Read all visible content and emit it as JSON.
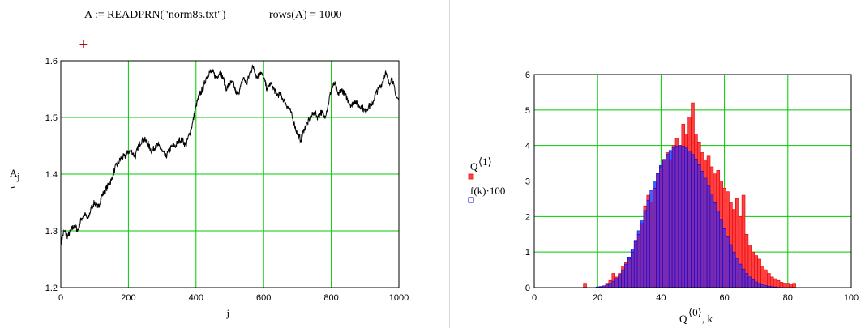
{
  "worksheet": {
    "read_formula": "A := READPRN(\"norm8s.txt\")",
    "rows_formula": "rows(A) = 1000",
    "marker": "+"
  },
  "chart_data": [
    {
      "type": "line",
      "xlabel": "j",
      "ylabel": "A",
      "ylabel_subscript": "j",
      "xlim": [
        0,
        1000
      ],
      "ylim": [
        1.2,
        1.6
      ],
      "xticks": [
        0,
        200,
        400,
        600,
        800,
        1000
      ],
      "yticks": [
        1.2,
        1.3,
        1.4,
        1.5,
        1.6
      ],
      "xtick_labels": [
        "0",
        "200",
        "400",
        "600",
        "800",
        "1000"
      ],
      "ytick_labels": [
        "1.2",
        "1.3",
        "1.4",
        "1.5",
        "1.6"
      ],
      "grid": true,
      "colors": {
        "line": "#000000",
        "grid": "#00c800"
      },
      "series": [
        {
          "x": [
            0,
            10,
            20,
            30,
            40,
            50,
            60,
            70,
            80,
            90,
            100,
            110,
            120,
            130,
            140,
            150,
            160,
            170,
            180,
            190,
            200,
            210,
            220,
            230,
            240,
            250,
            260,
            270,
            280,
            290,
            300,
            310,
            320,
            330,
            340,
            350,
            360,
            370,
            380,
            390,
            400,
            410,
            420,
            430,
            440,
            450,
            460,
            470,
            480,
            490,
            500,
            510,
            520,
            530,
            540,
            550,
            560,
            570,
            580,
            590,
            600,
            610,
            620,
            630,
            640,
            650,
            660,
            670,
            680,
            690,
            700,
            710,
            720,
            730,
            740,
            750,
            760,
            770,
            780,
            790,
            800,
            810,
            820,
            830,
            840,
            850,
            860,
            870,
            880,
            890,
            900,
            910,
            920,
            930,
            940,
            950,
            960,
            970,
            980,
            990,
            1000
          ],
          "values": [
            1.28,
            1.3,
            1.29,
            1.3,
            1.31,
            1.3,
            1.32,
            1.33,
            1.32,
            1.34,
            1.35,
            1.34,
            1.36,
            1.37,
            1.38,
            1.39,
            1.41,
            1.42,
            1.43,
            1.43,
            1.44,
            1.44,
            1.43,
            1.45,
            1.46,
            1.46,
            1.45,
            1.44,
            1.45,
            1.45,
            1.44,
            1.43,
            1.44,
            1.45,
            1.45,
            1.46,
            1.46,
            1.45,
            1.47,
            1.49,
            1.52,
            1.54,
            1.55,
            1.57,
            1.58,
            1.58,
            1.57,
            1.58,
            1.57,
            1.55,
            1.56,
            1.56,
            1.54,
            1.55,
            1.57,
            1.56,
            1.58,
            1.59,
            1.57,
            1.58,
            1.57,
            1.55,
            1.56,
            1.55,
            1.54,
            1.54,
            1.53,
            1.52,
            1.51,
            1.49,
            1.47,
            1.46,
            1.48,
            1.49,
            1.5,
            1.51,
            1.5,
            1.51,
            1.5,
            1.52,
            1.55,
            1.56,
            1.54,
            1.55,
            1.54,
            1.53,
            1.52,
            1.53,
            1.52,
            1.52,
            1.51,
            1.52,
            1.52,
            1.54,
            1.55,
            1.56,
            1.58,
            1.56,
            1.57,
            1.54,
            1.53
          ]
        }
      ]
    },
    {
      "type": "bar",
      "xlabel": "Q",
      "xlabel_superscript": "⟨0⟩",
      "xlabel_suffix": ", k",
      "xlim": [
        0,
        100
      ],
      "ylim": [
        0,
        6
      ],
      "xticks": [
        0,
        20,
        40,
        60,
        80,
        100
      ],
      "yticks": [
        0,
        1,
        2,
        3,
        4,
        5,
        6
      ],
      "xtick_labels": [
        "0",
        "20",
        "40",
        "60",
        "80",
        "100"
      ],
      "ytick_labels": [
        "0",
        "1",
        "2",
        "3",
        "4",
        "5",
        "6"
      ],
      "grid": true,
      "legend": "left",
      "colors": {
        "grid": "#00c800",
        "overlap": "#7a2ab0"
      },
      "series": [
        {
          "name": "Q",
          "name_superscript": "⟨1⟩",
          "color": "#ff4040",
          "edge": "#e00000",
          "x": [
            16,
            17,
            18,
            19,
            20,
            21,
            22,
            23,
            24,
            25,
            26,
            27,
            28,
            29,
            30,
            31,
            32,
            33,
            34,
            35,
            36,
            37,
            38,
            39,
            40,
            41,
            42,
            43,
            44,
            45,
            46,
            47,
            48,
            49,
            50,
            51,
            52,
            53,
            54,
            55,
            56,
            57,
            58,
            59,
            60,
            61,
            62,
            63,
            64,
            65,
            66,
            67,
            68,
            69,
            70,
            71,
            72,
            73,
            74,
            75,
            76,
            77,
            78,
            79,
            80,
            81,
            82,
            83,
            84
          ],
          "values": [
            0.1,
            0,
            0,
            0,
            0,
            0.02,
            0.05,
            0.1,
            0.2,
            0.4,
            0.3,
            0.4,
            0.6,
            0.7,
            0.8,
            1.0,
            1.3,
            1.5,
            1.8,
            2.3,
            2.6,
            2.4,
            2.8,
            3.2,
            3.4,
            3.6,
            3.8,
            3.6,
            4.0,
            4.2,
            4.0,
            4.6,
            4.3,
            4.8,
            5.2,
            4.3,
            4.1,
            3.8,
            3.6,
            3.7,
            3.4,
            3.2,
            3.3,
            3.0,
            2.8,
            2.7,
            2.4,
            2.2,
            2.5,
            2.0,
            2.6,
            1.5,
            1.2,
            1.0,
            0.9,
            0.8,
            0.6,
            0.5,
            0.4,
            0.3,
            0.25,
            0.2,
            0.15,
            0.12,
            0.1,
            0.08,
            0.1,
            0,
            0
          ]
        },
        {
          "name": "f(k)·100",
          "color": "#4060ff",
          "edge": "#0000d0",
          "x": [
            16,
            17,
            18,
            19,
            20,
            21,
            22,
            23,
            24,
            25,
            26,
            27,
            28,
            29,
            30,
            31,
            32,
            33,
            34,
            35,
            36,
            37,
            38,
            39,
            40,
            41,
            42,
            43,
            44,
            45,
            46,
            47,
            48,
            49,
            50,
            51,
            52,
            53,
            54,
            55,
            56,
            57,
            58,
            59,
            60,
            61,
            62,
            63,
            64,
            65,
            66,
            67,
            68,
            69,
            70,
            71,
            72,
            73,
            74,
            75,
            76,
            77,
            78,
            79,
            80,
            81,
            82,
            83,
            84
          ],
          "values": [
            0,
            0,
            0,
            0,
            0.02,
            0.03,
            0.05,
            0.08,
            0.12,
            0.18,
            0.26,
            0.37,
            0.5,
            0.66,
            0.86,
            1.08,
            1.33,
            1.6,
            1.88,
            2.17,
            2.46,
            2.74,
            3.0,
            3.23,
            3.44,
            3.61,
            3.75,
            3.86,
            3.95,
            3.99,
            4.0,
            3.98,
            3.93,
            3.85,
            3.75,
            3.62,
            3.46,
            3.28,
            3.08,
            2.86,
            2.63,
            2.39,
            2.15,
            1.9,
            1.66,
            1.43,
            1.21,
            1.0,
            0.82,
            0.66,
            0.52,
            0.4,
            0.3,
            0.22,
            0.16,
            0.12,
            0.08,
            0.06,
            0.04,
            0.03,
            0.02,
            0.01,
            0,
            0,
            0,
            0,
            0,
            0,
            0
          ]
        }
      ]
    }
  ]
}
